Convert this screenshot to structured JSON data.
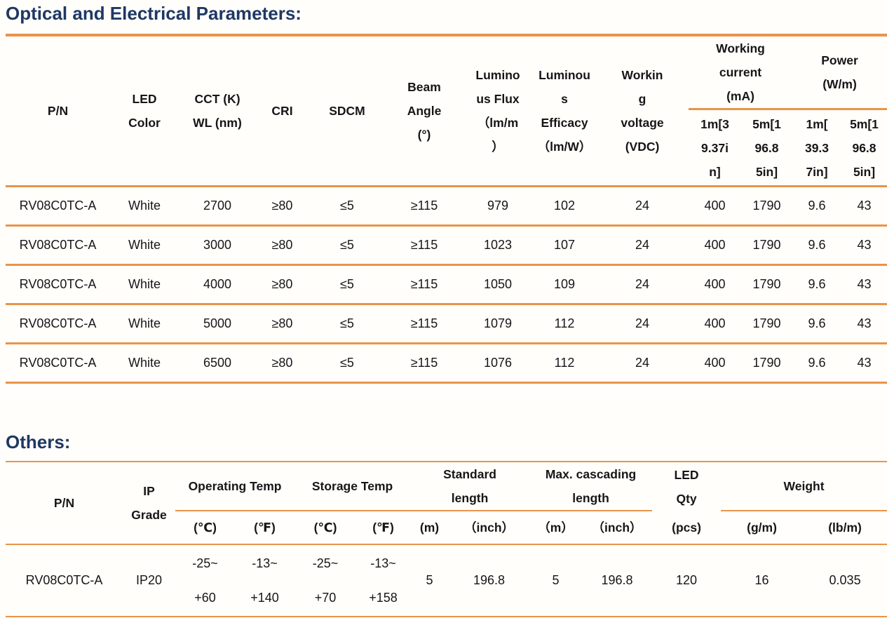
{
  "page": {
    "accent_orange": "#E8944A",
    "title_navy": "#1F3864",
    "text_color": "#161616",
    "background": "#FFFEFB"
  },
  "optical": {
    "title": "Optical and Electrical Parameters:",
    "headers": {
      "pn": "P/N",
      "led_color": "LED\nColor",
      "cct": "CCT (K)\nWL (nm)",
      "cri": "CRI",
      "sdcm": "SDCM",
      "beam_angle": "Beam\nAngle\n(°)",
      "luminous_flux": "Lumino\nus Flux\n（lm/m\n）",
      "luminous_efficacy": "Luminou\ns\nEfficacy\n（lm/W）",
      "working_voltage": "Workin\ng\nvoltage\n(VDC)",
      "working_current_group": "Working\ncurrent\n(mA)",
      "power_group": "Power\n(W/m)",
      "subs": [
        "1m[3\n9.37i\nn]",
        "5m[1\n96.8\n5in]",
        "1m[\n39.3\n7in]",
        "5m[1\n96.8\n5in]"
      ]
    },
    "rows": [
      [
        "RV08C0TC-A",
        "White",
        "2700",
        "≥80",
        "≤5",
        "≥115",
        "979",
        "102",
        "24",
        "400",
        "1790",
        "9.6",
        "43"
      ],
      [
        "RV08C0TC-A",
        "White",
        "3000",
        "≥80",
        "≤5",
        "≥115",
        "1023",
        "107",
        "24",
        "400",
        "1790",
        "9.6",
        "43"
      ],
      [
        "RV08C0TC-A",
        "White",
        "4000",
        "≥80",
        "≤5",
        "≥115",
        "1050",
        "109",
        "24",
        "400",
        "1790",
        "9.6",
        "43"
      ],
      [
        "RV08C0TC-A",
        "White",
        "5000",
        "≥80",
        "≤5",
        "≥115",
        "1079",
        "112",
        "24",
        "400",
        "1790",
        "9.6",
        "43"
      ],
      [
        "RV08C0TC-A",
        "White",
        "6500",
        "≥80",
        "≤5",
        "≥115",
        "1076",
        "112",
        "24",
        "400",
        "1790",
        "9.6",
        "43"
      ]
    ]
  },
  "others": {
    "title": "Others:",
    "headers": {
      "pn": "P/N",
      "ip_grade": "IP\nGrade",
      "operating_temp_group": "Operating Temp",
      "storage_temp_group": "Storage Temp",
      "standard_length_group": "Standard\nlength",
      "max_cascading_group": "Max. cascading\nlength",
      "led_qty": "LED\nQty",
      "weight_group": "Weight",
      "subs": [
        "(℃)",
        "(℉)",
        "(℃)",
        "(℉)",
        "(m)",
        "（inch）",
        "（m）",
        "（inch）",
        "(pcs)",
        "(g/m)",
        "(lb/m)"
      ]
    },
    "rows": [
      [
        "RV08C0TC-A",
        "IP20",
        "-25~\n+60",
        "-13~\n+140",
        "-25~\n+70",
        "-13~\n+158",
        "5",
        "196.8",
        "5",
        "196.8",
        "120",
        "16",
        "0.035"
      ]
    ]
  }
}
